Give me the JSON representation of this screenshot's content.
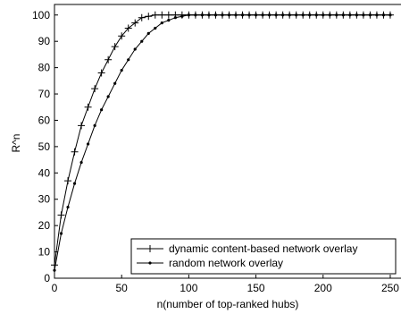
{
  "chart_data": {
    "type": "line",
    "x": [
      0,
      5,
      10,
      15,
      20,
      25,
      30,
      35,
      40,
      45,
      50,
      55,
      60,
      65,
      70,
      75,
      80,
      85,
      90,
      95,
      100,
      105,
      110,
      115,
      120,
      125,
      130,
      135,
      140,
      145,
      150,
      155,
      160,
      165,
      170,
      175,
      180,
      185,
      190,
      195,
      200,
      205,
      210,
      215,
      220,
      225,
      230,
      235,
      240,
      245,
      250
    ],
    "series": [
      {
        "name": "dynamic content-based network overlay",
        "color": "#000000",
        "marker": "plus",
        "values": [
          5,
          24,
          37,
          48,
          58,
          65,
          72,
          78,
          83,
          88,
          92,
          95,
          97,
          99,
          99.5,
          100,
          100,
          100,
          100,
          100,
          100,
          100,
          100,
          100,
          100,
          100,
          100,
          100,
          100,
          100,
          100,
          100,
          100,
          100,
          100,
          100,
          100,
          100,
          100,
          100,
          100,
          100,
          100,
          100,
          100,
          100,
          100,
          100,
          100,
          100,
          100
        ]
      },
      {
        "name": "random network overlay",
        "color": "#000000",
        "marker": "dot",
        "values": [
          3,
          17,
          27,
          36,
          44,
          51,
          58,
          64,
          69,
          74,
          79,
          83,
          87,
          90,
          93,
          95,
          97,
          98,
          99,
          99.5,
          100,
          100,
          100,
          100,
          100,
          100,
          100,
          100,
          100,
          100,
          100,
          100,
          100,
          100,
          100,
          100,
          100,
          100,
          100,
          100,
          100,
          100,
          100,
          100,
          100,
          100,
          100,
          100,
          100,
          100,
          100
        ]
      }
    ],
    "xlabel": "n(number of top-ranked hubs)",
    "ylabel": "R^n",
    "xlim": [
      0,
      258
    ],
    "ylim": [
      0,
      104
    ],
    "xticks": [
      0,
      50,
      100,
      150,
      200,
      250
    ],
    "yticks": [
      0,
      10,
      20,
      30,
      40,
      50,
      60,
      70,
      80,
      90,
      100
    ],
    "legend": "lower right"
  }
}
